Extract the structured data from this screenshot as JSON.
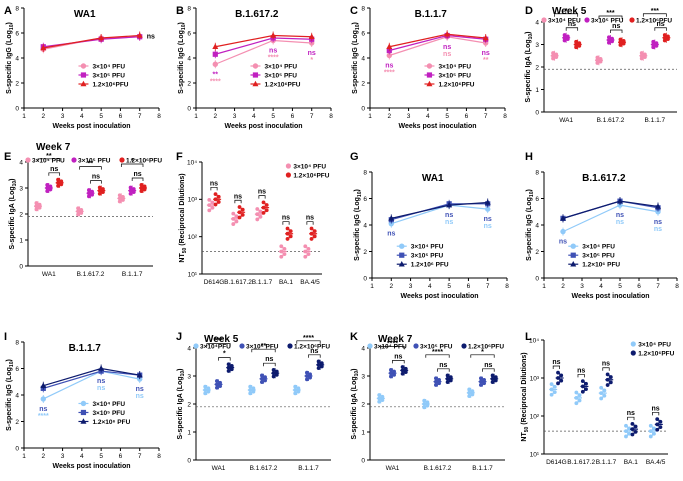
{
  "figure": {
    "xlabel_weeks": "Weeks post inoculation",
    "ylabel_igg": "S-specific IgG (Log",
    "ylabel_iga": "S-specific IgA (Log",
    "log10_sub": "10",
    "ylabel_nt50": "NT",
    "nt50_sub": "50",
    "ylabel_nt50_rest": " (Reciprocal Dilutions)"
  },
  "chart_data": [
    {
      "panel": "A",
      "type": "line",
      "title": "WA1",
      "x": [
        2,
        5,
        7
      ],
      "xlim": [
        1,
        8
      ],
      "ylim": [
        0,
        8
      ],
      "xticks": [
        "1",
        "2",
        "3",
        "4",
        "5",
        "6",
        "7",
        "8"
      ],
      "yticks": [
        "0",
        "2",
        "4",
        "6",
        "8"
      ],
      "series": [
        {
          "name": "3×10⁴ PFU",
          "color": "#f48fb1",
          "marker": "circle",
          "values": [
            4.7,
            5.6,
            5.7
          ]
        },
        {
          "name": "3×10⁵ PFU",
          "color": "#c020c0",
          "marker": "square",
          "values": [
            4.9,
            5.5,
            5.7
          ]
        },
        {
          "name": "1.2×10⁶PFU",
          "color": "#e02020",
          "marker": "triangle",
          "values": [
            4.8,
            5.6,
            5.8
          ]
        }
      ],
      "annotations": [
        {
          "x": 7,
          "text": "ns",
          "color": "#000000"
        }
      ]
    },
    {
      "panel": "B",
      "type": "line",
      "title": "B.1.617.2",
      "x": [
        2,
        5,
        7
      ],
      "xlim": [
        1,
        8
      ],
      "ylim": [
        0,
        8
      ],
      "xticks": [
        "1",
        "2",
        "3",
        "4",
        "5",
        "6",
        "7",
        "8"
      ],
      "yticks": [
        "0",
        "2",
        "4",
        "6",
        "8"
      ],
      "series": [
        {
          "name": "3×10⁴ PFU",
          "color": "#f48fb1",
          "marker": "circle",
          "values": [
            3.5,
            5.4,
            5.2
          ]
        },
        {
          "name": "3×10⁵ PFU",
          "color": "#c020c0",
          "marker": "square",
          "values": [
            4.3,
            5.6,
            5.5
          ]
        },
        {
          "name": "1.2×10⁶PFU",
          "color": "#e02020",
          "marker": "triangle",
          "values": [
            4.9,
            5.8,
            5.7
          ]
        }
      ],
      "annotations": [
        {
          "x": 2,
          "text": "**",
          "color": "#c020c0"
        },
        {
          "x": 2,
          "text": "****",
          "color": "#f48fb1"
        },
        {
          "x": 5,
          "text": "ns",
          "color": "#c020c0"
        },
        {
          "x": 5,
          "text": "****",
          "color": "#f48fb1"
        },
        {
          "x": 7,
          "text": "ns",
          "color": "#c020c0"
        },
        {
          "x": 7,
          "text": "*",
          "color": "#f48fb1"
        }
      ]
    },
    {
      "panel": "C",
      "type": "line",
      "title": "B.1.1.7",
      "x": [
        2,
        5,
        7
      ],
      "xlim": [
        1,
        8
      ],
      "ylim": [
        0,
        8
      ],
      "xticks": [
        "1",
        "2",
        "3",
        "4",
        "5",
        "6",
        "7",
        "8"
      ],
      "yticks": [
        "0",
        "2",
        "4",
        "6",
        "8"
      ],
      "series": [
        {
          "name": "3×10⁴ PFU",
          "color": "#f48fb1",
          "marker": "circle",
          "values": [
            4.2,
            5.7,
            5.2
          ]
        },
        {
          "name": "3×10⁵ PFU",
          "color": "#c020c0",
          "marker": "square",
          "values": [
            4.6,
            5.8,
            5.5
          ]
        },
        {
          "name": "1.2×10⁶PFU",
          "color": "#e02020",
          "marker": "triangle",
          "values": [
            4.9,
            5.9,
            5.6
          ]
        }
      ],
      "annotations": [
        {
          "x": 2,
          "text": "ns",
          "color": "#c020c0"
        },
        {
          "x": 2,
          "text": "****",
          "color": "#f48fb1"
        },
        {
          "x": 5,
          "text": "ns",
          "color": "#c020c0"
        },
        {
          "x": 5,
          "text": "ns",
          "color": "#f48fb1"
        },
        {
          "x": 7,
          "text": "ns",
          "color": "#c020c0"
        },
        {
          "x": 7,
          "text": "**",
          "color": "#f48fb1"
        }
      ]
    },
    {
      "panel": "D",
      "type": "scatter",
      "title": "Week 5",
      "categories": [
        "WA1",
        "B.1.617.2",
        "B.1.1.7"
      ],
      "ylim": [
        0,
        4
      ],
      "yticks": [
        "0",
        "1",
        "2",
        "3",
        "4"
      ],
      "series": [
        {
          "name": "3×10⁴ PFU",
          "color": "#f48fb1",
          "values": [
            2.5,
            2.3,
            2.5
          ]
        },
        {
          "name": "3×10⁵ PFU",
          "color": "#c020c0",
          "values": [
            3.3,
            3.2,
            3.0
          ]
        },
        {
          "name": "1.2×10⁶PFU",
          "color": "#e02020",
          "values": [
            3.0,
            3.1,
            3.3
          ]
        }
      ],
      "cutoff": 1.9,
      "significance": [
        {
          "category": "WA1",
          "outer": "*",
          "inner": "ns"
        },
        {
          "category": "B.1.617.2",
          "outer": "***",
          "inner": "ns"
        },
        {
          "category": "B.1.1.7",
          "outer": "***",
          "inner": "ns"
        }
      ]
    },
    {
      "panel": "E",
      "type": "scatter",
      "title": "Week 7",
      "categories": [
        "WA1",
        "B.1.617.2",
        "B.1.1.7"
      ],
      "ylim": [
        0,
        4
      ],
      "yticks": [
        "0",
        "1",
        "2",
        "3",
        "4"
      ],
      "series": [
        {
          "name": "3×10⁴ PFU",
          "color": "#f48fb1",
          "values": [
            2.3,
            2.1,
            2.6
          ]
        },
        {
          "name": "3×10⁵ PFU",
          "color": "#c020c0",
          "values": [
            3.0,
            2.8,
            2.9
          ]
        },
        {
          "name": "1.2×10⁶PFU",
          "color": "#e02020",
          "values": [
            3.2,
            2.9,
            3.0
          ]
        }
      ],
      "cutoff": 1.9,
      "significance": [
        {
          "category": "WA1",
          "outer": "**",
          "inner": "ns"
        },
        {
          "category": "B.1.617.2",
          "outer": "**",
          "inner": "ns"
        },
        {
          "category": "B.1.1.7",
          "outer": "*",
          "inner": "ns"
        }
      ]
    },
    {
      "panel": "F",
      "type": "scatter",
      "title": "",
      "categories": [
        "D614G",
        "B.1.617.2",
        "B.1.1.7",
        "BA.1",
        "BA.4/5"
      ],
      "yscale": "log",
      "ylim": [
        10,
        10000
      ],
      "yticks": [
        "10¹",
        "10²",
        "10³",
        "10⁴"
      ],
      "series": [
        {
          "name": "3×10⁴ PFU",
          "color": "#f48fb1",
          "values": [
            700,
            300,
            400,
            40,
            40
          ]
        },
        {
          "name": "1.2×10⁶PFU",
          "color": "#e02020",
          "values": [
            1000,
            450,
            600,
            120,
            120
          ]
        }
      ],
      "cutoff": 40,
      "significance": [
        "ns",
        "ns",
        "ns",
        "ns",
        "ns"
      ]
    },
    {
      "panel": "G",
      "type": "line",
      "title": "WA1",
      "x": [
        2,
        5,
        7
      ],
      "xlim": [
        1,
        8
      ],
      "ylim": [
        0,
        8
      ],
      "xticks": [
        "1",
        "2",
        "3",
        "4",
        "5",
        "6",
        "7",
        "8"
      ],
      "yticks": [
        "0",
        "2",
        "4",
        "6",
        "8"
      ],
      "series": [
        {
          "name": "3×10⁴ PFU",
          "color": "#90caf9",
          "marker": "circle",
          "values": [
            4.1,
            5.5,
            5.2
          ]
        },
        {
          "name": "3×10⁵ PFU",
          "color": "#3f51b5",
          "marker": "square",
          "values": [
            4.4,
            5.6,
            5.6
          ]
        },
        {
          "name": "1.2×10⁶ PFU",
          "color": "#0d1b6e",
          "marker": "triangle",
          "values": [
            4.5,
            5.5,
            5.7
          ]
        }
      ],
      "annotations": [
        {
          "x": 2,
          "text": "ns",
          "color": "#3f51b5"
        },
        {
          "x": 5,
          "text": "ns",
          "color": "#3f51b5"
        },
        {
          "x": 5,
          "text": "ns",
          "color": "#90caf9"
        },
        {
          "x": 7,
          "text": "ns",
          "color": "#3f51b5"
        },
        {
          "x": 7,
          "text": "ns",
          "color": "#90caf9"
        }
      ]
    },
    {
      "panel": "H",
      "type": "line",
      "title": "B.1.617.2",
      "x": [
        2,
        5,
        7
      ],
      "xlim": [
        1,
        8
      ],
      "ylim": [
        0,
        8
      ],
      "xticks": [
        "1",
        "2",
        "3",
        "4",
        "5",
        "6",
        "7",
        "8"
      ],
      "yticks": [
        "0",
        "2",
        "4",
        "6",
        "8"
      ],
      "series": [
        {
          "name": "3×10⁴ PFU",
          "color": "#90caf9",
          "marker": "circle",
          "values": [
            3.5,
            5.5,
            5.0
          ]
        },
        {
          "name": "3×10⁵ PFU",
          "color": "#3f51b5",
          "marker": "square",
          "values": [
            4.5,
            5.8,
            5.3
          ]
        },
        {
          "name": "1.2×10⁶ PFU",
          "color": "#0d1b6e",
          "marker": "triangle",
          "values": [
            4.5,
            5.8,
            5.4
          ]
        }
      ],
      "annotations": [
        {
          "x": 2,
          "text": "ns",
          "color": "#3f51b5"
        },
        {
          "x": 5,
          "text": "ns",
          "color": "#3f51b5"
        },
        {
          "x": 5,
          "text": "ns",
          "color": "#90caf9"
        },
        {
          "x": 7,
          "text": "ns",
          "color": "#3f51b5"
        },
        {
          "x": 7,
          "text": "ns",
          "color": "#90caf9"
        }
      ]
    },
    {
      "panel": "I",
      "type": "line",
      "title": "B.1.1.7",
      "x": [
        2,
        5,
        7
      ],
      "xlim": [
        1,
        8
      ],
      "ylim": [
        0,
        8
      ],
      "xticks": [
        "1",
        "2",
        "3",
        "4",
        "5",
        "6",
        "7",
        "8"
      ],
      "yticks": [
        "0",
        "2",
        "4",
        "6",
        "8"
      ],
      "series": [
        {
          "name": "3×10⁴ PFU",
          "color": "#90caf9",
          "marker": "circle",
          "values": [
            3.7,
            5.8,
            5.2
          ]
        },
        {
          "name": "3×10⁵ PFU",
          "color": "#3f51b5",
          "marker": "square",
          "values": [
            4.5,
            5.8,
            5.5
          ]
        },
        {
          "name": "1.2×10⁶ PFU",
          "color": "#0d1b6e",
          "marker": "triangle",
          "values": [
            4.7,
            6.0,
            5.5
          ]
        }
      ],
      "annotations": [
        {
          "x": 2,
          "text": "ns",
          "color": "#3f51b5"
        },
        {
          "x": 2,
          "text": "****",
          "color": "#90caf9"
        },
        {
          "x": 5,
          "text": "ns",
          "color": "#3f51b5"
        },
        {
          "x": 5,
          "text": "ns",
          "color": "#90caf9"
        },
        {
          "x": 7,
          "text": "ns",
          "color": "#3f51b5"
        },
        {
          "x": 7,
          "text": "ns",
          "color": "#90caf9"
        }
      ]
    },
    {
      "panel": "J",
      "type": "scatter",
      "title": "Week 5",
      "categories": [
        "WA1",
        "B.1.617.2",
        "B.1.1.7"
      ],
      "ylim": [
        0,
        4
      ],
      "yticks": [
        "0",
        "1",
        "2",
        "3",
        "4"
      ],
      "series": [
        {
          "name": "3×10⁴PFU",
          "color": "#90caf9",
          "values": [
            2.5,
            2.5,
            2.5
          ]
        },
        {
          "name": "3×10⁵ PFU",
          "color": "#3f51b5",
          "values": [
            2.7,
            2.9,
            3.0
          ]
        },
        {
          "name": "1.2×10⁶PFU",
          "color": "#0d1b6e",
          "values": [
            3.3,
            3.1,
            3.4
          ]
        }
      ],
      "cutoff": 1.9,
      "significance": [
        {
          "category": "WA1",
          "outer": "***",
          "inner": "*"
        },
        {
          "category": "B.1.617.2",
          "outer": "**",
          "inner": "ns"
        },
        {
          "category": "B.1.1.7",
          "outer": "****",
          "inner": "ns"
        }
      ]
    },
    {
      "panel": "K",
      "type": "scatter",
      "title": "Week 7",
      "categories": [
        "WA1",
        "B.1.617.2",
        "B.1.1.7"
      ],
      "ylim": [
        0,
        4
      ],
      "yticks": [
        "0",
        "1",
        "2",
        "3",
        "4"
      ],
      "series": [
        {
          "name": "3×10⁴ PFU",
          "color": "#90caf9",
          "values": [
            2.2,
            2.0,
            2.4
          ]
        },
        {
          "name": "3×10⁵ PFU",
          "color": "#3f51b5",
          "values": [
            3.1,
            2.8,
            2.8
          ]
        },
        {
          "name": "1.2×10⁶PFU",
          "color": "#0d1b6e",
          "values": [
            3.2,
            2.9,
            2.9
          ]
        }
      ],
      "cutoff": 1.9,
      "significance": [
        {
          "category": "WA1",
          "outer": "****",
          "inner": "ns"
        },
        {
          "category": "B.1.617.2",
          "outer": "****",
          "inner": "ns"
        },
        {
          "category": "B.1.1.7",
          "outer": "*",
          "inner": "ns"
        }
      ]
    },
    {
      "panel": "L",
      "type": "scatter",
      "title": "",
      "categories": [
        "D614G",
        "B.1.617.2",
        "B.1.1.7",
        "BA.1",
        "BA.4/5"
      ],
      "yscale": "log",
      "ylim": [
        10,
        10000
      ],
      "yticks": [
        "10¹",
        "10²",
        "10³",
        "10⁴"
      ],
      "series": [
        {
          "name": "3×10⁴ PFU",
          "color": "#90caf9",
          "values": [
            500,
            300,
            400,
            40,
            40
          ]
        },
        {
          "name": "1.2×10⁶PFU",
          "color": "#0d1b6e",
          "values": [
            1000,
            600,
            900,
            45,
            60
          ]
        }
      ],
      "cutoff": 40,
      "significance": [
        "ns",
        "ns",
        "ns",
        "ns",
        "ns"
      ]
    }
  ]
}
